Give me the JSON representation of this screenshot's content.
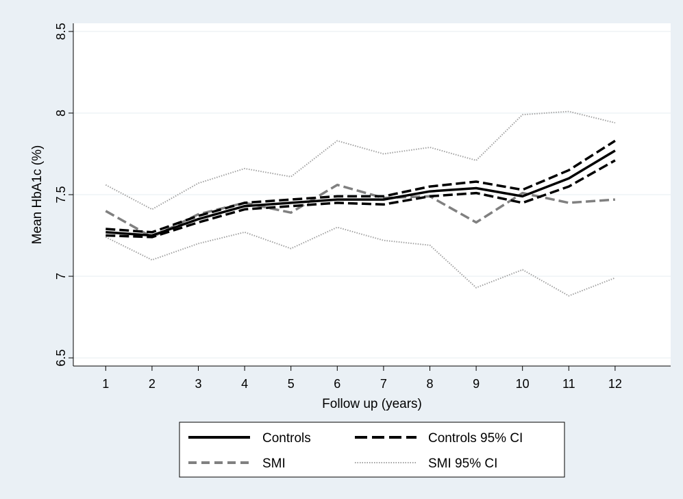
{
  "chart_data": {
    "type": "line",
    "xlabel": "Follow up (years)",
    "ylabel": "Mean HbA1c (%)",
    "xlim": [
      0.3,
      13.2
    ],
    "ylim": [
      6.45,
      8.55
    ],
    "xticks": [
      1,
      2,
      3,
      4,
      5,
      6,
      7,
      8,
      9,
      10,
      11,
      12
    ],
    "yticks": [
      6.5,
      7,
      7.5,
      8,
      8.5
    ],
    "ytick_labels": [
      "6.5",
      "7",
      "7.5",
      "8",
      "8.5"
    ],
    "grid": true,
    "legend_position": "bottom",
    "x": [
      1,
      2,
      3,
      4,
      5,
      6,
      7,
      8,
      9,
      10,
      11,
      12
    ],
    "series": [
      {
        "name": "Controls",
        "style": "solid",
        "color": "#000000",
        "values": [
          7.27,
          7.25,
          7.35,
          7.43,
          7.45,
          7.47,
          7.47,
          7.52,
          7.54,
          7.49,
          7.6,
          7.77
        ]
      },
      {
        "name": "Controls 95% CI",
        "style": "dashed",
        "color": "#000000",
        "values": [
          7.29,
          7.27,
          7.37,
          7.45,
          7.47,
          7.49,
          7.49,
          7.55,
          7.58,
          7.53,
          7.65,
          7.83
        ]
      },
      {
        "name": "",
        "style": "dashed",
        "color": "#000000",
        "values": [
          7.25,
          7.24,
          7.33,
          7.41,
          7.43,
          7.45,
          7.44,
          7.49,
          7.51,
          7.45,
          7.55,
          7.71
        ]
      },
      {
        "name": "SMI",
        "style": "dashed",
        "color": "#808080",
        "values": [
          7.4,
          7.24,
          7.38,
          7.45,
          7.39,
          7.56,
          7.48,
          7.49,
          7.33,
          7.51,
          7.45,
          7.47
        ]
      },
      {
        "name": "SMI 95% CI",
        "style": "dotted",
        "color": "#a0a0a0",
        "values": [
          7.56,
          7.41,
          7.57,
          7.66,
          7.61,
          7.83,
          7.75,
          7.79,
          7.71,
          7.99,
          8.01,
          7.94
        ]
      },
      {
        "name": "",
        "style": "dotted",
        "color": "#a0a0a0",
        "values": [
          7.24,
          7.1,
          7.2,
          7.27,
          7.17,
          7.3,
          7.22,
          7.19,
          6.93,
          7.04,
          6.88,
          6.99
        ]
      }
    ]
  }
}
